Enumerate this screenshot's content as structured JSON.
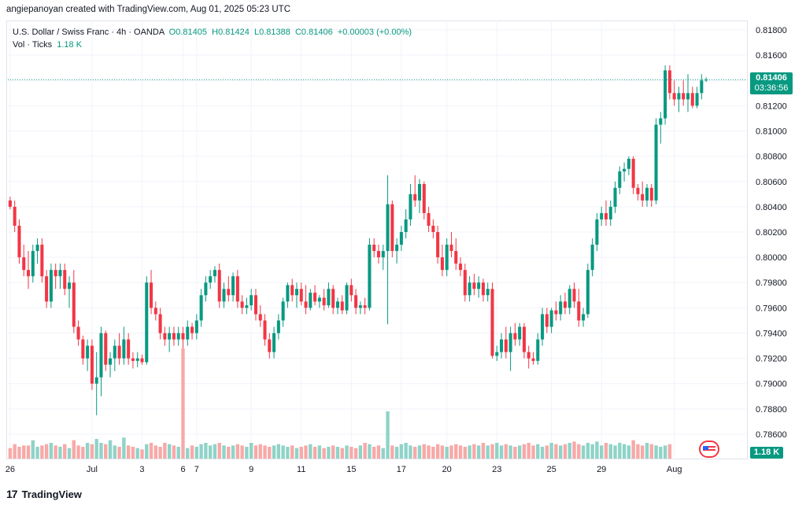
{
  "header": {
    "credit": "angiepanoyan created with TradingView.com, Aug 01, 2025 05:23 UTC"
  },
  "legend": {
    "symbol": "U.S. Dollar / Swiss Franc · 4h · OANDA",
    "open": "O0.81405",
    "high": "H0.81424",
    "low": "L0.81388",
    "close": "C0.81406",
    "change": "+0.00003 (+0.00%)",
    "vol_label": "Vol · Ticks",
    "vol_value": "1.18 K"
  },
  "price_tag": {
    "price": "0.81406",
    "countdown": "03:36:56"
  },
  "volume_tag": "1.18 K",
  "footer": {
    "brand": "TradingView"
  },
  "colors": {
    "up": "#089981",
    "down": "#f23645",
    "vol_up": "#8fd3c8",
    "vol_down": "#f7a9a7",
    "grid": "#f0f3fa"
  },
  "chart_data": {
    "type": "candlestick",
    "y_ticks": [
      "0.81800",
      "0.81600",
      "0.81400",
      "0.81200",
      "0.81000",
      "0.80800",
      "0.80600",
      "0.80400",
      "0.80200",
      "0.80000",
      "0.79800",
      "0.79600",
      "0.79400",
      "0.79200",
      "0.79000",
      "0.78800",
      "0.78600"
    ],
    "ylim": [
      0.7855,
      0.8185
    ],
    "x_ticks": [
      {
        "label": "26",
        "index": 0
      },
      {
        "label": "Jul",
        "index": 18
      },
      {
        "label": "3",
        "index": 29
      },
      {
        "label": "6",
        "index": 38
      },
      {
        "label": "7",
        "index": 41
      },
      {
        "label": "9",
        "index": 53
      },
      {
        "label": "11",
        "index": 64
      },
      {
        "label": "15",
        "index": 75
      },
      {
        "label": "17",
        "index": 86
      },
      {
        "label": "20",
        "index": 96
      },
      {
        "label": "23",
        "index": 107
      },
      {
        "label": "25",
        "index": 119
      },
      {
        "label": "29",
        "index": 130
      },
      {
        "label": "Aug",
        "index": 146
      }
    ],
    "ohlc": [
      [
        0.8045,
        0.8048,
        0.8038,
        0.804
      ],
      [
        0.804,
        0.8045,
        0.802,
        0.8025
      ],
      [
        0.8025,
        0.803,
        0.7995,
        0.8
      ],
      [
        0.8,
        0.801,
        0.7985,
        0.799
      ],
      [
        0.799,
        0.8005,
        0.7975,
        0.7985
      ],
      [
        0.7985,
        0.801,
        0.798,
        0.8005
      ],
      [
        0.8005,
        0.8015,
        0.7995,
        0.801
      ],
      [
        0.801,
        0.8015,
        0.798,
        0.7985
      ],
      [
        0.7985,
        0.799,
        0.796,
        0.7965
      ],
      [
        0.7965,
        0.7995,
        0.796,
        0.799
      ],
      [
        0.799,
        0.7995,
        0.7975,
        0.7985
      ],
      [
        0.7985,
        0.7995,
        0.7975,
        0.799
      ],
      [
        0.799,
        0.7995,
        0.797,
        0.7975
      ],
      [
        0.7975,
        0.7985,
        0.796,
        0.798
      ],
      [
        0.798,
        0.799,
        0.794,
        0.7945
      ],
      [
        0.7945,
        0.795,
        0.793,
        0.7935
      ],
      [
        0.7935,
        0.7938,
        0.7915,
        0.792
      ],
      [
        0.792,
        0.7935,
        0.791,
        0.793
      ],
      [
        0.793,
        0.7935,
        0.7895,
        0.79
      ],
      [
        0.79,
        0.7925,
        0.7875,
        0.7905
      ],
      [
        0.7905,
        0.7945,
        0.789,
        0.794
      ],
      [
        0.794,
        0.7942,
        0.791,
        0.7915
      ],
      [
        0.7915,
        0.7925,
        0.7905,
        0.792
      ],
      [
        0.792,
        0.7935,
        0.791,
        0.793
      ],
      [
        0.793,
        0.794,
        0.7915,
        0.792
      ],
      [
        0.792,
        0.7945,
        0.7915,
        0.7935
      ],
      [
        0.7935,
        0.794,
        0.7915,
        0.792
      ],
      [
        0.792,
        0.7925,
        0.7912,
        0.7918
      ],
      [
        0.7918,
        0.7925,
        0.7913,
        0.792
      ],
      [
        0.792,
        0.7923,
        0.7915,
        0.7917
      ],
      [
        0.7917,
        0.7985,
        0.7915,
        0.798
      ],
      [
        0.798,
        0.799,
        0.7955,
        0.796
      ],
      [
        0.796,
        0.7965,
        0.795,
        0.7955
      ],
      [
        0.7955,
        0.796,
        0.7935,
        0.794
      ],
      [
        0.794,
        0.7945,
        0.793,
        0.7935
      ],
      [
        0.7935,
        0.7945,
        0.7925,
        0.794
      ],
      [
        0.794,
        0.7945,
        0.793,
        0.7935
      ],
      [
        0.7935,
        0.7945,
        0.793,
        0.794
      ],
      [
        0.794,
        0.7945,
        0.7928,
        0.7935
      ],
      [
        0.7935,
        0.795,
        0.793,
        0.7945
      ],
      [
        0.7945,
        0.7948,
        0.7935,
        0.794
      ],
      [
        0.794,
        0.7955,
        0.7935,
        0.795
      ],
      [
        0.795,
        0.7975,
        0.7945,
        0.797
      ],
      [
        0.797,
        0.7985,
        0.7965,
        0.798
      ],
      [
        0.798,
        0.799,
        0.7975,
        0.7985
      ],
      [
        0.7985,
        0.7993,
        0.798,
        0.799
      ],
      [
        0.799,
        0.7995,
        0.796,
        0.7965
      ],
      [
        0.7965,
        0.798,
        0.796,
        0.7975
      ],
      [
        0.7975,
        0.7985,
        0.7965,
        0.797
      ],
      [
        0.797,
        0.7988,
        0.7965,
        0.7985
      ],
      [
        0.7985,
        0.799,
        0.796,
        0.7965
      ],
      [
        0.7965,
        0.797,
        0.7955,
        0.796
      ],
      [
        0.796,
        0.7968,
        0.7955,
        0.7962
      ],
      [
        0.7962,
        0.7975,
        0.7958,
        0.797
      ],
      [
        0.797,
        0.7975,
        0.795,
        0.7955
      ],
      [
        0.7955,
        0.7962,
        0.7945,
        0.795
      ],
      [
        0.795,
        0.7955,
        0.793,
        0.7935
      ],
      [
        0.7935,
        0.794,
        0.792,
        0.7925
      ],
      [
        0.7925,
        0.7945,
        0.792,
        0.794
      ],
      [
        0.794,
        0.7955,
        0.7935,
        0.795
      ],
      [
        0.795,
        0.7968,
        0.7945,
        0.7965
      ],
      [
        0.7965,
        0.798,
        0.796,
        0.7978
      ],
      [
        0.7978,
        0.7983,
        0.7965,
        0.797
      ],
      [
        0.797,
        0.798,
        0.796,
        0.7975
      ],
      [
        0.7975,
        0.798,
        0.7962,
        0.7965
      ],
      [
        0.7965,
        0.7978,
        0.7955,
        0.796
      ],
      [
        0.796,
        0.7975,
        0.7958,
        0.7972
      ],
      [
        0.7972,
        0.7978,
        0.7962,
        0.7965
      ],
      [
        0.7965,
        0.797,
        0.796,
        0.7968
      ],
      [
        0.7968,
        0.7975,
        0.7958,
        0.7962
      ],
      [
        0.7962,
        0.798,
        0.796,
        0.7975
      ],
      [
        0.7975,
        0.7978,
        0.7955,
        0.796
      ],
      [
        0.796,
        0.7968,
        0.7955,
        0.7965
      ],
      [
        0.7965,
        0.797,
        0.7955,
        0.7958
      ],
      [
        0.7958,
        0.798,
        0.7955,
        0.7978
      ],
      [
        0.7978,
        0.7983,
        0.7965,
        0.797
      ],
      [
        0.797,
        0.7975,
        0.7955,
        0.796
      ],
      [
        0.796,
        0.7965,
        0.7955,
        0.7962
      ],
      [
        0.7962,
        0.7968,
        0.7955,
        0.796
      ],
      [
        0.796,
        0.8015,
        0.7958,
        0.801
      ],
      [
        0.801,
        0.8015,
        0.8,
        0.8005
      ],
      [
        0.8005,
        0.801,
        0.7995,
        0.8
      ],
      [
        0.8,
        0.801,
        0.799,
        0.8005
      ],
      [
        0.8005,
        0.8065,
        0.7947,
        0.8042
      ],
      [
        0.8042,
        0.8045,
        0.8,
        0.8005
      ],
      [
        0.8005,
        0.8015,
        0.7995,
        0.801
      ],
      [
        0.801,
        0.8025,
        0.8005,
        0.802
      ],
      [
        0.802,
        0.8038,
        0.8015,
        0.803
      ],
      [
        0.803,
        0.8058,
        0.8025,
        0.805
      ],
      [
        0.805,
        0.8065,
        0.804,
        0.8045
      ],
      [
        0.8045,
        0.8062,
        0.8035,
        0.8058
      ],
      [
        0.8058,
        0.806,
        0.803,
        0.8035
      ],
      [
        0.8035,
        0.804,
        0.802,
        0.8025
      ],
      [
        0.8025,
        0.803,
        0.8015,
        0.802
      ],
      [
        0.802,
        0.8025,
        0.7995,
        0.8
      ],
      [
        0.8,
        0.801,
        0.7985,
        0.799
      ],
      [
        0.799,
        0.8015,
        0.7985,
        0.801
      ],
      [
        0.801,
        0.802,
        0.8,
        0.8005
      ],
      [
        0.8005,
        0.8015,
        0.799,
        0.7995
      ],
      [
        0.7995,
        0.8,
        0.7985,
        0.799
      ],
      [
        0.799,
        0.7995,
        0.7965,
        0.797
      ],
      [
        0.797,
        0.7985,
        0.7965,
        0.798
      ],
      [
        0.798,
        0.7987,
        0.797,
        0.7975
      ],
      [
        0.7975,
        0.7985,
        0.7968,
        0.798
      ],
      [
        0.798,
        0.7983,
        0.7965,
        0.797
      ],
      [
        0.797,
        0.798,
        0.7965,
        0.7975
      ],
      [
        0.7975,
        0.798,
        0.792,
        0.7922
      ],
      [
        0.7922,
        0.793,
        0.7918,
        0.7925
      ],
      [
        0.7925,
        0.794,
        0.792,
        0.7935
      ],
      [
        0.7935,
        0.7945,
        0.792,
        0.7925
      ],
      [
        0.7925,
        0.7945,
        0.791,
        0.794
      ],
      [
        0.794,
        0.7948,
        0.793,
        0.7935
      ],
      [
        0.7935,
        0.7948,
        0.793,
        0.7945
      ],
      [
        0.7945,
        0.7948,
        0.792,
        0.7925
      ],
      [
        0.7925,
        0.793,
        0.7912,
        0.792
      ],
      [
        0.792,
        0.7925,
        0.7915,
        0.7918
      ],
      [
        0.7918,
        0.794,
        0.7915,
        0.7935
      ],
      [
        0.7935,
        0.796,
        0.793,
        0.7955
      ],
      [
        0.7955,
        0.796,
        0.794,
        0.7945
      ],
      [
        0.7945,
        0.796,
        0.794,
        0.7958
      ],
      [
        0.7958,
        0.7965,
        0.795,
        0.7955
      ],
      [
        0.7955,
        0.797,
        0.795,
        0.7965
      ],
      [
        0.7965,
        0.7972,
        0.7955,
        0.796
      ],
      [
        0.796,
        0.7978,
        0.7955,
        0.7975
      ],
      [
        0.7975,
        0.798,
        0.796,
        0.7965
      ],
      [
        0.7965,
        0.7975,
        0.7945,
        0.795
      ],
      [
        0.795,
        0.796,
        0.7945,
        0.7955
      ],
      [
        0.7955,
        0.7995,
        0.7952,
        0.799
      ],
      [
        0.799,
        0.8015,
        0.7985,
        0.801
      ],
      [
        0.801,
        0.8035,
        0.8005,
        0.803
      ],
      [
        0.803,
        0.804,
        0.8025,
        0.8035
      ],
      [
        0.8035,
        0.8045,
        0.8025,
        0.803
      ],
      [
        0.803,
        0.8045,
        0.8025,
        0.804
      ],
      [
        0.804,
        0.806,
        0.8035,
        0.8055
      ],
      [
        0.8055,
        0.8072,
        0.805,
        0.8068
      ],
      [
        0.8068,
        0.8075,
        0.806,
        0.807
      ],
      [
        0.807,
        0.808,
        0.8065,
        0.8078
      ],
      [
        0.8078,
        0.808,
        0.805,
        0.8055
      ],
      [
        0.8055,
        0.8058,
        0.8045,
        0.805
      ],
      [
        0.805,
        0.806,
        0.804,
        0.8045
      ],
      [
        0.8045,
        0.8058,
        0.804,
        0.8055
      ],
      [
        0.8055,
        0.8058,
        0.804,
        0.8045
      ],
      [
        0.8045,
        0.811,
        0.8042,
        0.8105
      ],
      [
        0.8105,
        0.8115,
        0.809,
        0.811
      ],
      [
        0.811,
        0.8152,
        0.8105,
        0.8148
      ],
      [
        0.8148,
        0.8152,
        0.8125,
        0.813
      ],
      [
        0.813,
        0.814,
        0.812,
        0.8125
      ],
      [
        0.8125,
        0.8135,
        0.8115,
        0.813
      ],
      [
        0.813,
        0.814,
        0.812,
        0.8125
      ],
      [
        0.8125,
        0.8145,
        0.8115,
        0.813
      ],
      [
        0.813,
        0.8135,
        0.8118,
        0.812
      ],
      [
        0.812,
        0.8135,
        0.8118,
        0.813
      ],
      [
        0.813,
        0.8145,
        0.8125,
        0.814
      ],
      [
        0.81405,
        0.81424,
        0.81388,
        0.81406
      ]
    ],
    "volume": [
      0.4,
      0.55,
      0.45,
      0.5,
      0.5,
      0.7,
      0.45,
      0.5,
      0.55,
      0.6,
      0.5,
      0.45,
      0.55,
      0.4,
      0.7,
      0.5,
      0.45,
      0.6,
      0.55,
      0.75,
      0.6,
      0.55,
      0.7,
      0.5,
      0.45,
      0.8,
      0.5,
      0.45,
      0.4,
      0.35,
      0.55,
      0.6,
      0.5,
      0.45,
      0.6,
      0.55,
      0.5,
      0.45,
      4.2,
      0.4,
      0.5,
      0.45,
      0.55,
      0.6,
      0.5,
      0.55,
      0.6,
      0.5,
      0.45,
      0.5,
      0.55,
      0.5,
      0.45,
      0.6,
      0.5,
      0.55,
      0.5,
      0.45,
      0.5,
      0.55,
      0.5,
      0.45,
      0.5,
      0.4,
      0.45,
      0.5,
      0.55,
      0.45,
      0.5,
      0.4,
      0.45,
      0.5,
      0.45,
      0.4,
      0.5,
      0.45,
      0.4,
      0.5,
      0.6,
      0.55,
      0.45,
      0.5,
      0.4,
      1.8,
      0.5,
      0.45,
      0.55,
      0.6,
      0.5,
      0.45,
      0.5,
      0.55,
      0.5,
      0.45,
      0.55,
      0.5,
      0.45,
      0.5,
      0.55,
      0.5,
      0.45,
      0.5,
      0.55,
      0.5,
      0.6,
      0.5,
      0.55,
      0.6,
      0.5,
      0.55,
      0.5,
      0.45,
      0.5,
      0.55,
      0.6,
      0.5,
      0.55,
      0.45,
      0.5,
      0.6,
      0.55,
      0.5,
      0.55,
      0.6,
      0.65,
      0.55,
      0.5,
      0.6,
      0.55,
      0.65,
      0.5,
      0.6,
      0.55,
      0.5,
      0.6,
      0.55,
      0.5,
      0.7,
      0.55,
      0.5,
      0.6,
      0.55,
      0.5,
      0.45,
      0.5,
      0.55
    ]
  }
}
